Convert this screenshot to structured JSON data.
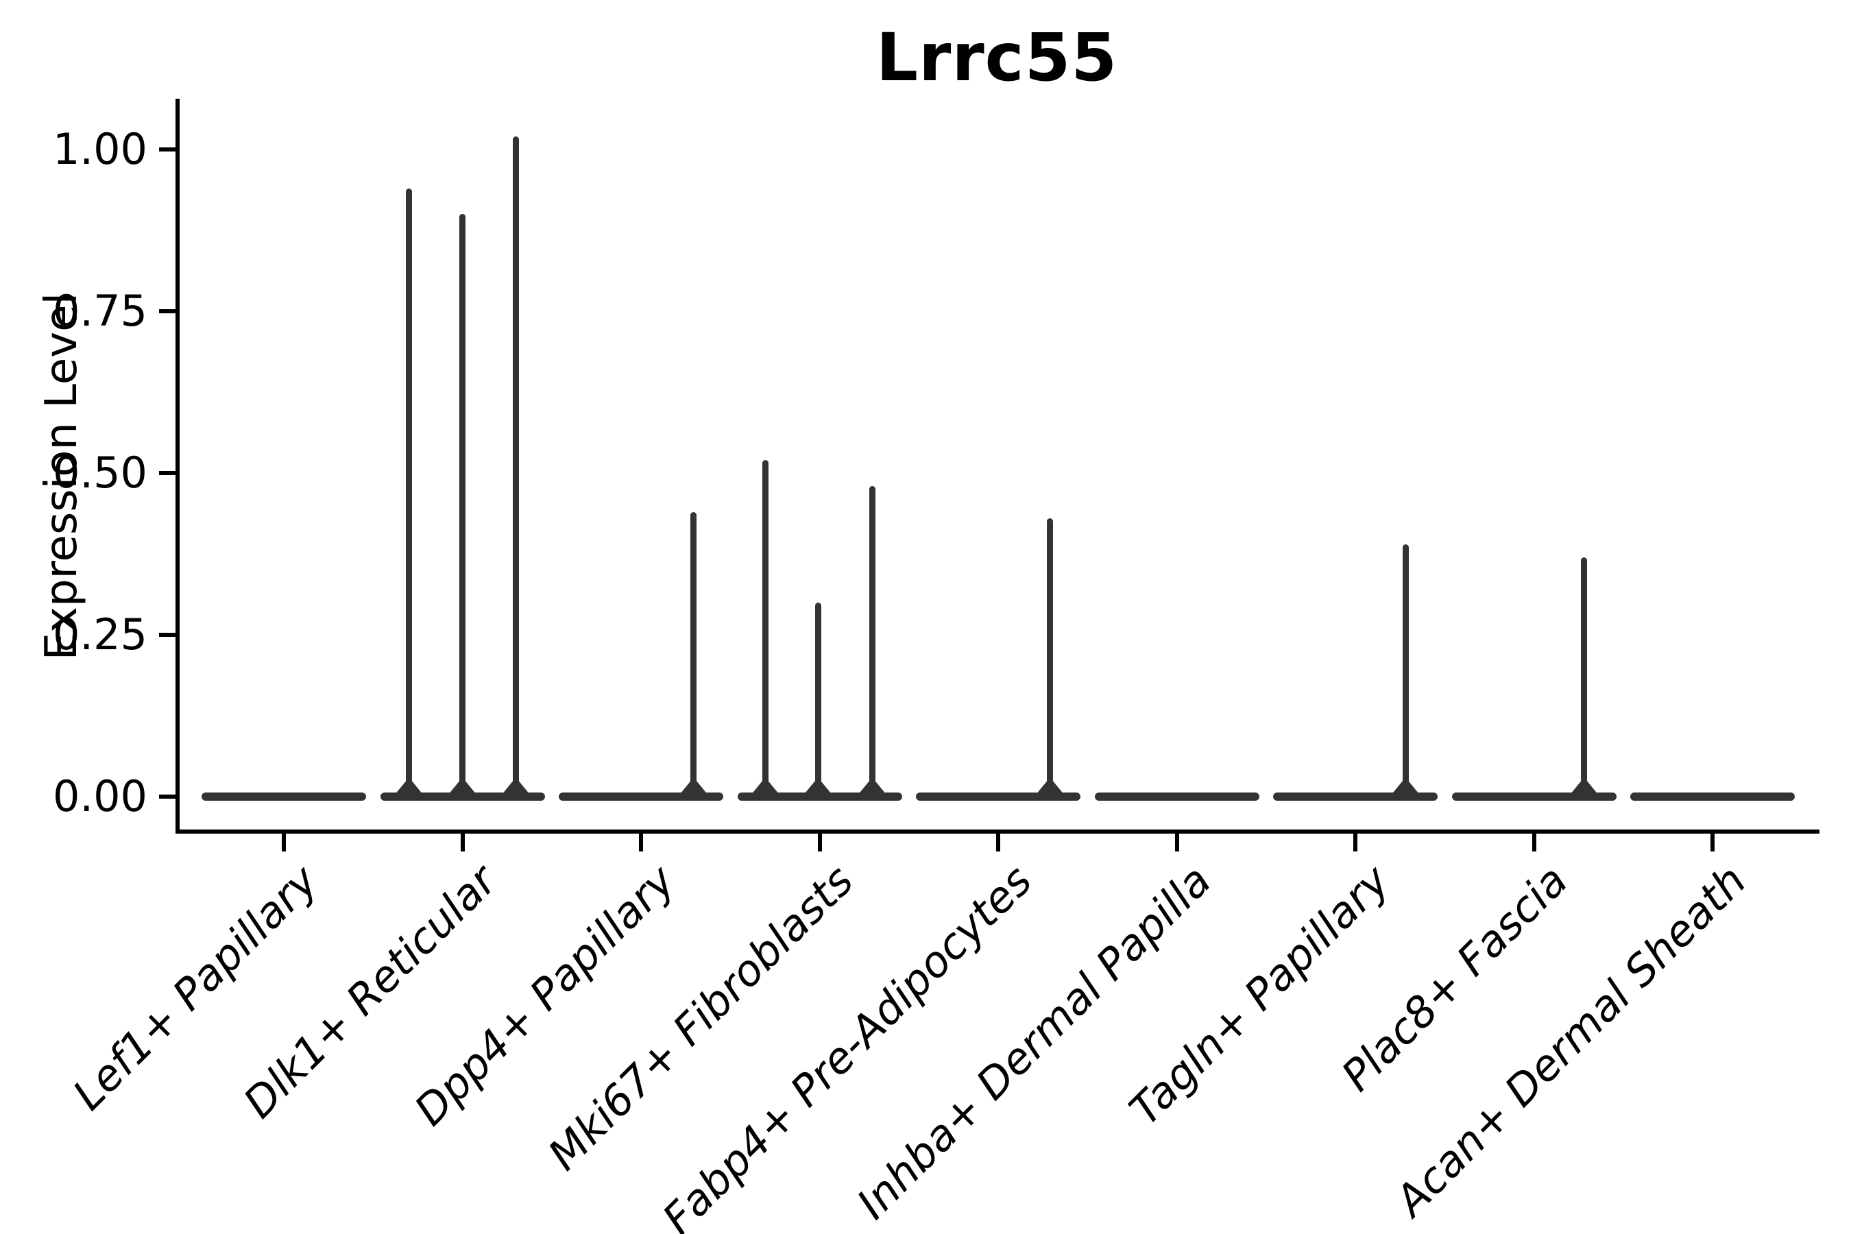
{
  "title": "Lrrc55",
  "ylabel": "Expression Level",
  "chart_data": {
    "type": "violin",
    "title": "Lrrc55",
    "xlabel": "",
    "ylabel": "Expression Level",
    "ylim": [
      -0.05,
      1.08
    ],
    "grid": false,
    "legend": "none",
    "ytick_values": [
      0.0,
      0.25,
      0.5,
      0.75,
      1.0
    ],
    "ytick_labels": [
      "0.00",
      "0.25",
      "0.50",
      "0.75",
      "1.00"
    ],
    "categories": [
      "Lef1+ Papillary",
      "Dlk1+ Reticular",
      "Dpp4+ Papillary",
      "Mki67+ Fibroblasts",
      "Fabp4+ Pre-Adipocytes",
      "Inhba+ Dermal Papilla",
      "Tagln+ Papillary",
      "Plac8+ Fascia",
      "Acan+ Dermal Sheath"
    ],
    "violins": [
      {
        "category": "Lef1+ Papillary",
        "baseline_value": 0.0,
        "spikes": []
      },
      {
        "category": "Dlk1+ Reticular",
        "baseline_value": 0.0,
        "spikes": [
          {
            "pos": -0.65,
            "value": 0.94
          },
          {
            "pos": 0.0,
            "value": 0.9
          },
          {
            "pos": 0.65,
            "value": 1.02
          }
        ]
      },
      {
        "category": "Dpp4+ Papillary",
        "baseline_value": 0.0,
        "spikes": [
          {
            "pos": 0.64,
            "value": 0.44
          }
        ]
      },
      {
        "category": "Mki67+ Fibroblasts",
        "baseline_value": 0.0,
        "spikes": [
          {
            "pos": -0.66,
            "value": 0.52
          },
          {
            "pos": -0.02,
            "value": 0.3
          },
          {
            "pos": 0.64,
            "value": 0.48
          }
        ]
      },
      {
        "category": "Fabp4+ Pre-Adipocytes",
        "baseline_value": 0.0,
        "spikes": [
          {
            "pos": 0.63,
            "value": 0.43
          }
        ]
      },
      {
        "category": "Inhba+ Dermal Papilla",
        "baseline_value": 0.0,
        "spikes": []
      },
      {
        "category": "Tagln+ Papillary",
        "baseline_value": 0.0,
        "spikes": [
          {
            "pos": 0.61,
            "value": 0.39
          }
        ]
      },
      {
        "category": "Plac8+ Fascia",
        "baseline_value": 0.0,
        "spikes": [
          {
            "pos": 0.61,
            "value": 0.37
          }
        ]
      },
      {
        "category": "Acan+ Dermal Sheath",
        "baseline_value": 0.0,
        "spikes": []
      }
    ],
    "colors": {
      "violin": "#333333",
      "axis": "#000000",
      "text": "#000000",
      "background": "#ffffff"
    }
  }
}
